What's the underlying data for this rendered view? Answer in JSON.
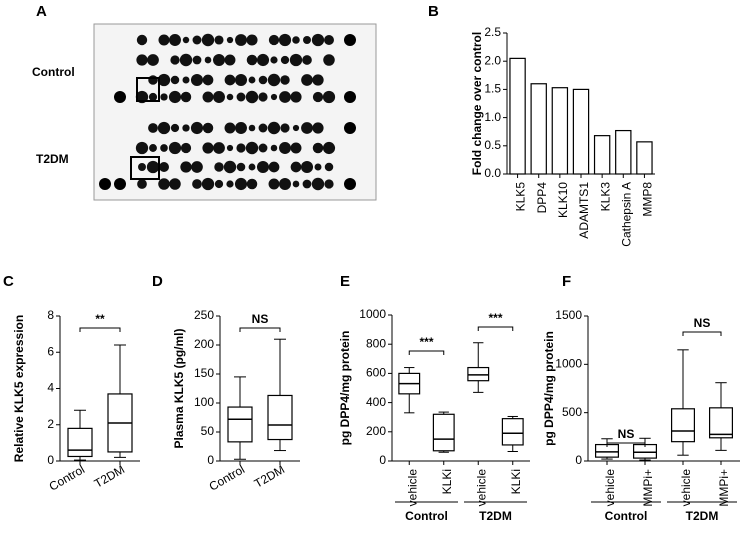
{
  "panel_a": {
    "label": "A",
    "rows": [
      "Control",
      "T2DM"
    ]
  },
  "chart_data": [
    {
      "type": "bar",
      "label": "B",
      "y_label": "Fold change over control",
      "categories": [
        "KLK5",
        "DPP4",
        "KLK10",
        "ADAMTS1",
        "KLK3",
        "Cathepsin A",
        "MMP8"
      ],
      "values": [
        2.05,
        1.6,
        1.53,
        1.5,
        0.68,
        0.77,
        0.57
      ],
      "color": "#ffffff",
      "ylim": [
        0,
        2.5
      ],
      "yticks": [
        {
          "value": 0,
          "label": "0.0"
        },
        {
          "value": 0.5,
          "label": "0.5"
        },
        {
          "value": 1,
          "label": "1.0"
        },
        {
          "value": 1.5,
          "label": "1.5"
        },
        {
          "value": 2,
          "label": "2.0"
        },
        {
          "value": 2.5,
          "label": "2.5"
        }
      ]
    },
    {
      "type": "box",
      "label": "C",
      "y_label": "Relative KLK5 expression",
      "categories": [
        "Control",
        "T2DM"
      ],
      "boxes": [
        {
          "min": 0.05,
          "q1": 0.25,
          "median": 0.6,
          "q3": 1.8,
          "max": 2.8
        },
        {
          "min": 0.2,
          "q1": 0.5,
          "median": 2.1,
          "q3": 3.7,
          "max": 6.4
        }
      ],
      "ylim": [
        0,
        8
      ],
      "yticks": [
        0,
        2,
        4,
        6,
        8
      ],
      "comparisons": [
        "**"
      ]
    },
    {
      "type": "box",
      "label": "D",
      "y_label": "Plasma KLK5 (pg/ml)",
      "categories": [
        "Control",
        "T2DM"
      ],
      "boxes": [
        {
          "min": 3,
          "q1": 33,
          "median": 72,
          "q3": 93,
          "max": 145
        },
        {
          "min": 18,
          "q1": 37,
          "median": 62,
          "q3": 113,
          "max": 210
        }
      ],
      "ylim": [
        0,
        250
      ],
      "yticks": [
        0,
        50,
        100,
        150,
        200,
        250
      ],
      "comparisons": [
        "NS"
      ]
    },
    {
      "type": "box",
      "label": "E",
      "y_label": "pg DPP4/mg protein",
      "categories": [
        "vehicle",
        "KLKi",
        "vehicle",
        "KLKi"
      ],
      "groups": [
        "Control",
        "T2DM"
      ],
      "boxes": [
        {
          "min": 330,
          "q1": 460,
          "median": 530,
          "q3": 600,
          "max": 640
        },
        {
          "min": 60,
          "q1": 70,
          "median": 150,
          "q3": 320,
          "max": 335
        },
        {
          "min": 470,
          "q1": 550,
          "median": 590,
          "q3": 640,
          "max": 810
        },
        {
          "min": 65,
          "q1": 110,
          "median": 190,
          "q3": 290,
          "max": 305
        }
      ],
      "ylim": [
        0,
        1000
      ],
      "yticks": [
        0,
        200,
        400,
        600,
        800,
        1000
      ],
      "comparisons": [
        "***",
        "***"
      ]
    },
    {
      "type": "box",
      "label": "F",
      "y_label": "pg DPP4/mg protein",
      "categories": [
        "vehicle",
        "MMPi+",
        "vehicle",
        "MMPi+"
      ],
      "groups": [
        "Control",
        "T2DM"
      ],
      "boxes": [
        {
          "min": 20,
          "q1": 40,
          "median": 95,
          "q3": 170,
          "max": 230
        },
        {
          "min": 10,
          "q1": 30,
          "median": 90,
          "q3": 170,
          "max": 235
        },
        {
          "min": 60,
          "q1": 200,
          "median": 310,
          "q3": 540,
          "max": 1150
        },
        {
          "min": 110,
          "q1": 240,
          "median": 275,
          "q3": 550,
          "max": 810
        }
      ],
      "ylim": [
        0,
        1500
      ],
      "yticks": [
        0,
        500,
        1000,
        1500
      ],
      "comparisons": [
        "NS",
        "NS"
      ]
    }
  ]
}
